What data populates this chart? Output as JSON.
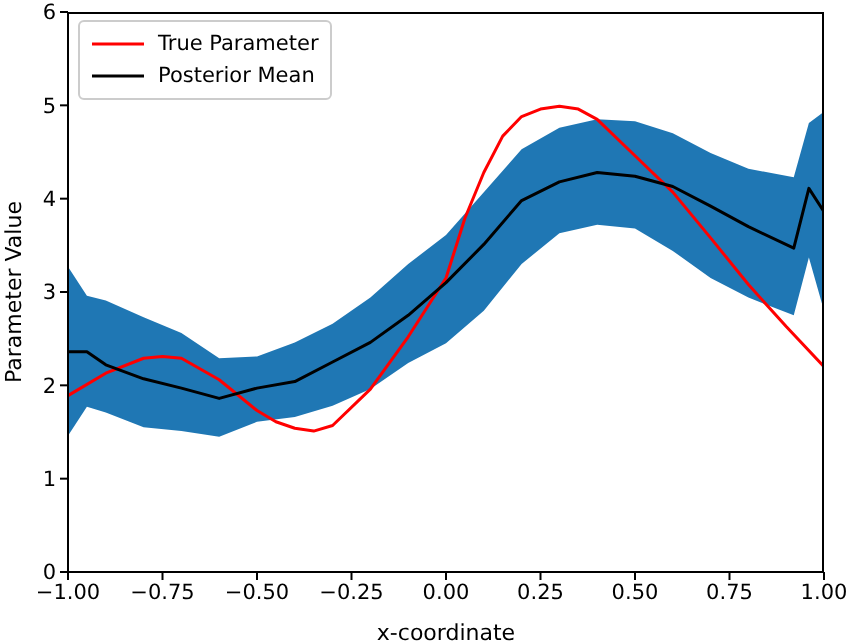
{
  "chart_data": {
    "type": "line",
    "xlabel": "x-coordinate",
    "ylabel": "Parameter Value",
    "xlim": [
      -1,
      1
    ],
    "ylim": [
      0,
      6
    ],
    "xticks": [
      {
        "value": -1,
        "label": "−1.00"
      },
      {
        "value": -0.75,
        "label": "−0.75"
      },
      {
        "value": -0.5,
        "label": "−0.50"
      },
      {
        "value": -0.25,
        "label": "−0.25"
      },
      {
        "value": 0,
        "label": "0.00"
      },
      {
        "value": 0.25,
        "label": "0.25"
      },
      {
        "value": 0.5,
        "label": "0.50"
      },
      {
        "value": 0.75,
        "label": "0.75"
      },
      {
        "value": 1,
        "label": "1.00"
      }
    ],
    "yticks": [
      0,
      1,
      2,
      3,
      4,
      5,
      6
    ],
    "grid": false,
    "legend": "top left",
    "marker": "none",
    "line_style": "solid",
    "series": [
      {
        "name": "True Parameter",
        "color": "#ff0000",
        "x": [
          -1,
          -0.9,
          -0.8,
          -0.75,
          -0.7,
          -0.6,
          -0.5,
          -0.45,
          -0.4,
          -0.35,
          -0.3,
          -0.2,
          -0.1,
          0,
          0.05,
          0.1,
          0.15,
          0.2,
          0.25,
          0.3,
          0.35,
          0.4,
          0.5,
          0.6,
          0.7,
          0.8,
          0.9,
          1
        ],
        "values": [
          1.89,
          2.13,
          2.29,
          2.31,
          2.29,
          2.06,
          1.73,
          1.61,
          1.54,
          1.51,
          1.57,
          1.96,
          2.52,
          3.15,
          3.79,
          4.28,
          4.67,
          4.88,
          4.96,
          4.99,
          4.96,
          4.85,
          4.46,
          4.07,
          3.58,
          3.08,
          2.63,
          2.2
        ]
      },
      {
        "name": "Posterior Mean",
        "color": "#000000",
        "colors": [
          "#1f77b4",
          "#1f77b4",
          "#1f77b4",
          "#1f77b4",
          "#1f77b4",
          "#1f77b4",
          "#1f77b4",
          "#1f77b4",
          "#1f77b4",
          "#1f77b4",
          "#1f77b4",
          "#1f77b4",
          "#1f77b4",
          "#1f77b4",
          "#1f77b4",
          "#1f77b4",
          "#1f77b4",
          "#1f77b4",
          "#1f77b4",
          "#1f77b4",
          "#1f77b4",
          "#1f77b4",
          "#1f77b4"
        ],
        "x": [
          -1,
          -0.95,
          -0.9,
          -0.8,
          -0.7,
          -0.6,
          -0.5,
          -0.4,
          -0.3,
          -0.2,
          -0.1,
          0,
          0.1,
          0.2,
          0.3,
          0.4,
          0.5,
          0.6,
          0.7,
          0.8,
          0.92,
          0.96,
          1
        ],
        "values": [
          2.36,
          2.36,
          2.22,
          2.07,
          1.97,
          1.86,
          1.97,
          2.04,
          2.25,
          2.46,
          2.75,
          3.1,
          3.51,
          3.98,
          4.18,
          4.28,
          4.24,
          4.13,
          3.92,
          3.7,
          3.47,
          4.11,
          3.86
        ],
        "lower": [
          1.46,
          1.77,
          1.71,
          1.55,
          1.51,
          1.45,
          1.61,
          1.66,
          1.78,
          1.96,
          2.24,
          2.45,
          2.8,
          3.3,
          3.63,
          3.72,
          3.68,
          3.44,
          3.15,
          2.94,
          2.75,
          3.37,
          2.8
        ],
        "upper": [
          3.27,
          2.96,
          2.91,
          2.73,
          2.56,
          2.29,
          2.31,
          2.46,
          2.66,
          2.94,
          3.3,
          3.61,
          4.07,
          4.53,
          4.76,
          4.85,
          4.83,
          4.7,
          4.49,
          4.32,
          4.23,
          4.81,
          4.93
        ]
      }
    ]
  }
}
